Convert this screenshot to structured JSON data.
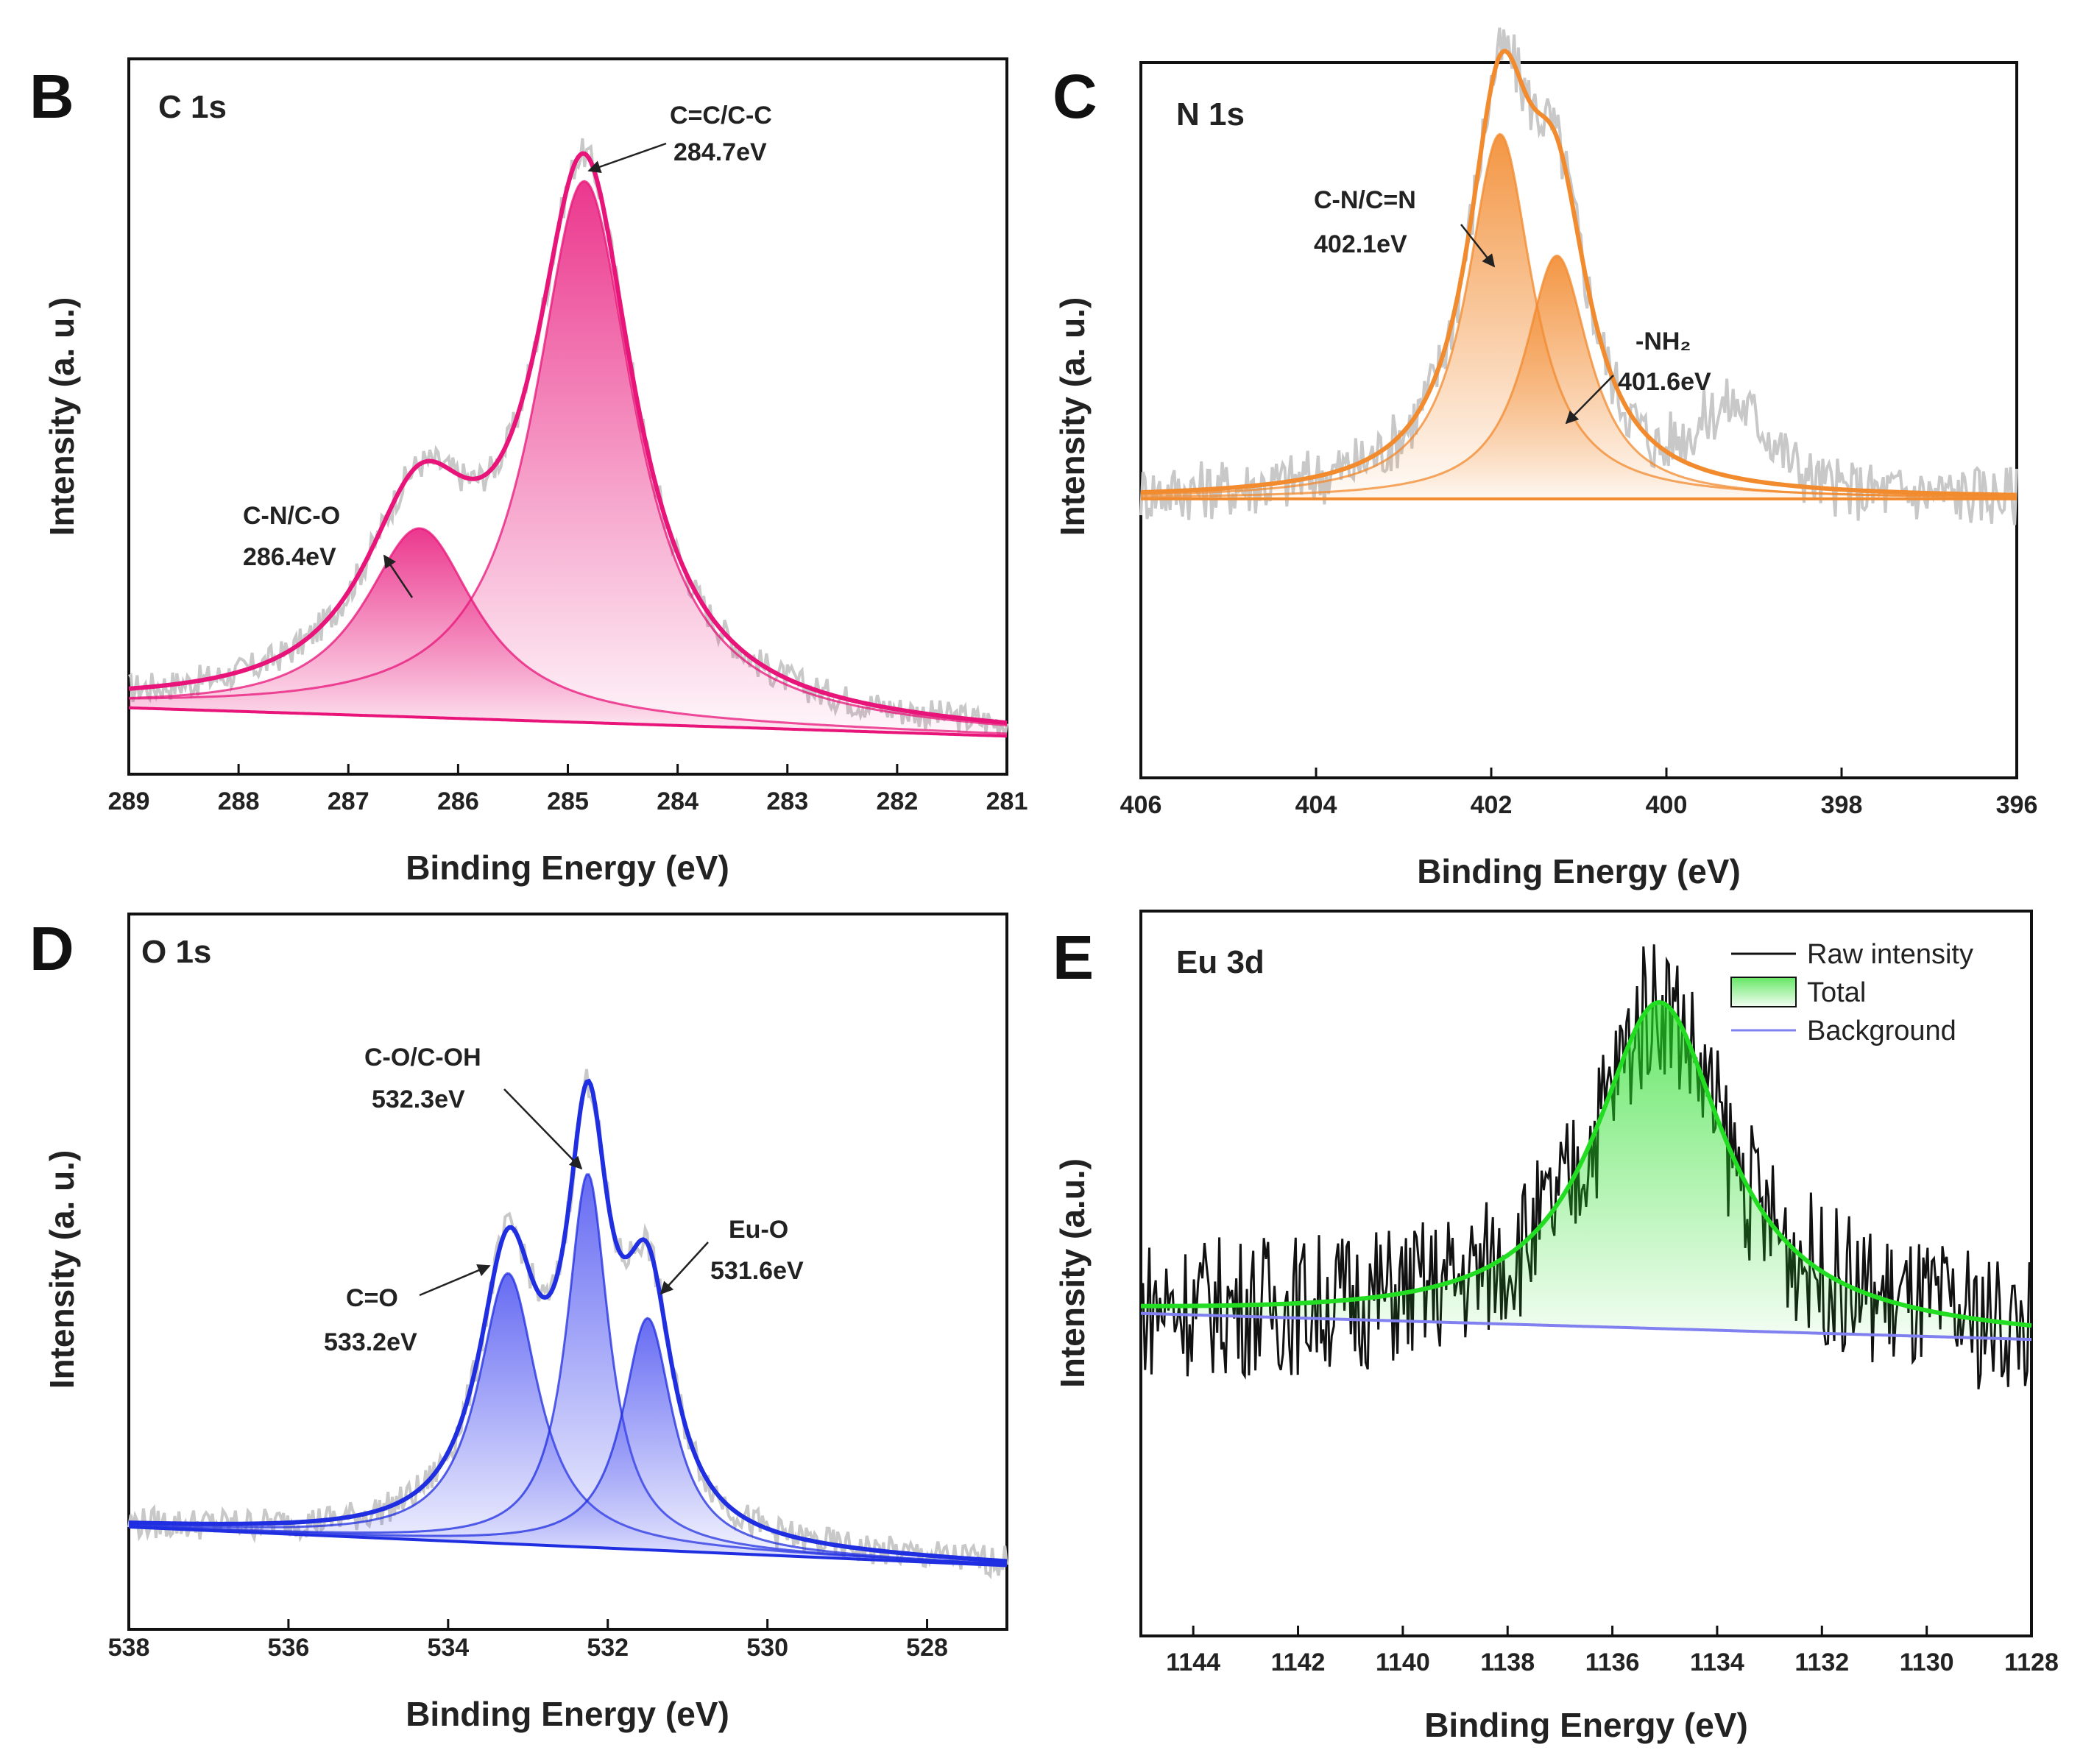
{
  "chart_data": [
    {
      "type": "line",
      "panel": "B",
      "title": "C 1s",
      "xlabel": "Binding Energy (eV)",
      "ylabel": "Intensity (a. u.)",
      "xlim": [
        289,
        281
      ],
      "xticks": [
        "289",
        "288",
        "287",
        "286",
        "285",
        "284",
        "283",
        "282",
        "281"
      ],
      "ylim": [
        0,
        1.08
      ],
      "color": "#e8147a",
      "background": {
        "start": 0.06,
        "end": 0.015
      },
      "peaks": [
        {
          "label": "C=C/C-C",
          "energy_label": "284.7eV",
          "center": 284.85,
          "height": 0.86,
          "width": 0.55
        },
        {
          "label": "C-N/C-O",
          "energy_label": "286.4eV",
          "center": 286.35,
          "height": 0.3,
          "width": 0.62
        }
      ],
      "annotations_pos": "top-right"
    },
    {
      "type": "line",
      "panel": "C",
      "title": "N 1s",
      "xlabel": "Binding Energy (eV)",
      "ylabel": "Intensity (a. u.)",
      "xlim": [
        406,
        396
      ],
      "xticks": [
        "406",
        "404",
        "402",
        "400",
        "398",
        "396"
      ],
      "ylim": [
        0,
        1.1
      ],
      "color": "#f28a2e",
      "background": {
        "start": 0.2,
        "end": 0.2
      },
      "peaks": [
        {
          "label": "C-N/C=N",
          "energy_label": "402.1eV",
          "center": 401.9,
          "height": 0.6,
          "width": 0.45
        },
        {
          "label": "-NH₂",
          "energy_label": "401.6eV",
          "center": 401.25,
          "height": 0.4,
          "width": 0.45
        }
      ]
    },
    {
      "type": "line",
      "panel": "D",
      "title": "O 1s",
      "xlabel": "Binding Energy (eV)",
      "ylabel": "Intensity (a. u.)",
      "xlim": [
        538,
        527
      ],
      "xticks": [
        "538",
        "536",
        "534",
        "532",
        "530",
        "528"
      ],
      "ylim": [
        0,
        1.1
      ],
      "color": "#1f2ee0",
      "background": {
        "start": 0.12,
        "end": 0.06
      },
      "peaks": [
        {
          "label": "C=O",
          "energy_label": "533.2eV",
          "center": 533.25,
          "height": 0.42,
          "width": 0.45
        },
        {
          "label": "C-O/C-OH",
          "energy_label": "532.3eV",
          "center": 532.25,
          "height": 0.58,
          "width": 0.32
        },
        {
          "label": "Eu-O",
          "energy_label": "531.6eV",
          "center": 531.5,
          "height": 0.36,
          "width": 0.38
        }
      ]
    },
    {
      "type": "line",
      "panel": "E",
      "title": "Eu 3d",
      "xlabel": "Binding Energy (eV)",
      "ylabel": "Intensity (a.u.)",
      "xlim": [
        1145,
        1128
      ],
      "xticks": [
        "1144",
        "1142",
        "1140",
        "1138",
        "1136",
        "1134",
        "1132",
        "1130",
        "1128"
      ],
      "ylim": [
        0,
        1.0
      ],
      "color": "#22dd22",
      "background": {
        "start": 0.25,
        "end": 0.21
      },
      "peaks": [
        {
          "label": "Total",
          "center": 1135.1,
          "height": 0.5,
          "width": 1.5
        }
      ],
      "legend": {
        "position": "top-right",
        "entries": [
          "Raw intensity",
          "Total",
          "Background"
        ],
        "colors": [
          "#111111",
          "#22dd22",
          "#8080f0"
        ]
      }
    }
  ]
}
